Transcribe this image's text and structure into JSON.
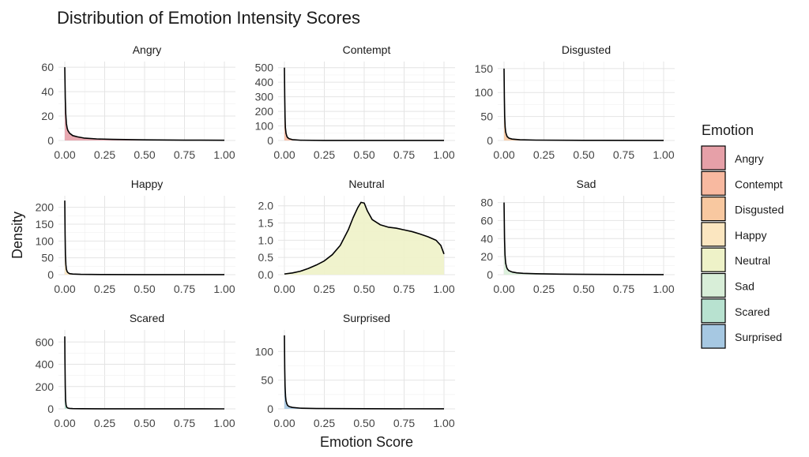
{
  "chart_data": {
    "type": "area",
    "title": "Distribution of Emotion Intensity Scores",
    "xlabel": "Emotion Score",
    "ylabel": "Density",
    "legend_title": "Emotion",
    "legend_position": "right",
    "grid": true,
    "x_ticks": [
      "0.00",
      "0.25",
      "0.50",
      "0.75",
      "1.00"
    ],
    "xlim": [
      0,
      1
    ],
    "panels": [
      {
        "name": "Angry",
        "color": "#E6A0A8",
        "y_ticks": [
          0,
          20,
          40,
          60
        ],
        "ylim": [
          0,
          62
        ],
        "x": [
          0,
          0.003,
          0.006,
          0.01,
          0.015,
          0.02,
          0.03,
          0.05,
          0.08,
          0.12,
          0.2,
          0.3,
          0.5,
          0.75,
          1.0
        ],
        "y": [
          60,
          35,
          22,
          14,
          10,
          8,
          6,
          4,
          3,
          2,
          1.3,
          0.9,
          0.5,
          0.3,
          0.2
        ]
      },
      {
        "name": "Contempt",
        "color": "#F8B9A0",
        "y_ticks": [
          0,
          100,
          200,
          300,
          400,
          500
        ],
        "ylim": [
          0,
          520
        ],
        "x": [
          0,
          0.002,
          0.004,
          0.006,
          0.01,
          0.015,
          0.02,
          0.03,
          0.05,
          0.1,
          0.25,
          0.5,
          1.0
        ],
        "y": [
          500,
          300,
          160,
          90,
          50,
          30,
          20,
          12,
          6,
          2,
          0.5,
          0.2,
          0.1
        ]
      },
      {
        "name": "Disgusted",
        "color": "#F8C8A0",
        "y_ticks": [
          0,
          50,
          100,
          150
        ],
        "ylim": [
          0,
          158
        ],
        "x": [
          0,
          0.002,
          0.004,
          0.007,
          0.01,
          0.015,
          0.02,
          0.03,
          0.05,
          0.1,
          0.2,
          0.5,
          1.0
        ],
        "y": [
          150,
          90,
          50,
          28,
          18,
          12,
          8,
          5,
          3,
          1.5,
          0.8,
          0.3,
          0.1
        ]
      },
      {
        "name": "Happy",
        "color": "#FBE6C0",
        "y_ticks": [
          0,
          50,
          100,
          150,
          200
        ],
        "ylim": [
          0,
          225
        ],
        "x": [
          0,
          0.002,
          0.004,
          0.007,
          0.01,
          0.015,
          0.02,
          0.03,
          0.05,
          0.1,
          0.25,
          0.5,
          1.0
        ],
        "y": [
          220,
          120,
          60,
          30,
          16,
          9,
          6,
          3,
          2,
          1,
          0.4,
          0.2,
          0.1
        ]
      },
      {
        "name": "Neutral",
        "color": "#EEF2C8",
        "y_ticks": [
          0.0,
          0.5,
          1.0,
          1.5,
          2.0
        ],
        "ylim": [
          0,
          2.2
        ],
        "x": [
          0,
          0.05,
          0.1,
          0.15,
          0.2,
          0.25,
          0.3,
          0.35,
          0.4,
          0.43,
          0.46,
          0.48,
          0.5,
          0.52,
          0.55,
          0.6,
          0.65,
          0.7,
          0.75,
          0.8,
          0.85,
          0.9,
          0.95,
          0.98,
          1.0
        ],
        "y": [
          0.02,
          0.05,
          0.1,
          0.18,
          0.28,
          0.4,
          0.58,
          0.85,
          1.3,
          1.65,
          1.95,
          2.1,
          2.08,
          1.85,
          1.6,
          1.45,
          1.38,
          1.35,
          1.3,
          1.25,
          1.18,
          1.1,
          1.0,
          0.85,
          0.6
        ]
      },
      {
        "name": "Sad",
        "color": "#D8EED8",
        "y_ticks": [
          0,
          20,
          40,
          60,
          80
        ],
        "ylim": [
          0,
          84
        ],
        "x": [
          0,
          0.003,
          0.006,
          0.01,
          0.015,
          0.02,
          0.03,
          0.05,
          0.08,
          0.12,
          0.2,
          0.35,
          0.5,
          0.75,
          1.0
        ],
        "y": [
          80,
          40,
          22,
          13,
          9,
          6.5,
          4.5,
          3,
          2,
          1.5,
          1,
          0.6,
          0.4,
          0.2,
          0.1
        ]
      },
      {
        "name": "Scared",
        "color": "#B8E2D0",
        "y_ticks": [
          0,
          200,
          400,
          600
        ],
        "ylim": [
          0,
          680
        ],
        "x": [
          0,
          0.001,
          0.003,
          0.005,
          0.008,
          0.012,
          0.02,
          0.03,
          0.05,
          0.1,
          0.25,
          0.5,
          1.0
        ],
        "y": [
          650,
          450,
          200,
          80,
          35,
          15,
          7,
          4,
          2,
          1,
          0.4,
          0.2,
          0.1
        ]
      },
      {
        "name": "Surprised",
        "color": "#A6C8E2",
        "y_ticks": [
          0,
          50,
          100
        ],
        "ylim": [
          0,
          132
        ],
        "x": [
          0,
          0.002,
          0.004,
          0.007,
          0.01,
          0.015,
          0.02,
          0.03,
          0.05,
          0.1,
          0.2,
          0.5,
          1.0
        ],
        "y": [
          128,
          70,
          40,
          22,
          14,
          9,
          6,
          4,
          2.5,
          1.2,
          0.6,
          0.2,
          0.1
        ]
      }
    ]
  }
}
